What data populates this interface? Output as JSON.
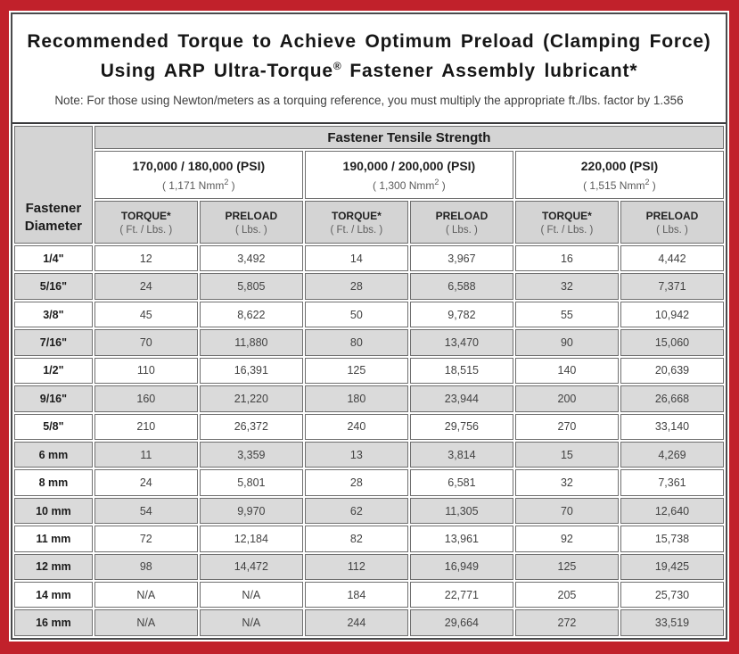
{
  "page": {
    "title_line1": "Recommended Torque to Achieve Optimum Preload (Clamping Force)",
    "title_line2_prefix": "Using ARP Ultra-Torque",
    "title_line2_reg": "®",
    "title_line2_suffix": " Fastener Assembly lubricant*",
    "note": "Note: For those using Newton/meters as a torquing reference, you must multiply the appropriate ft./lbs. factor by 1.356"
  },
  "colors": {
    "border_red": "#c1212b",
    "header_gray": "#d4d4d4",
    "stripe_gray": "#dadada",
    "frame_border": "#4a4a4c",
    "cell_border": "#6f6f6f"
  },
  "table": {
    "corner_header_line1": "Fastener",
    "corner_header_line2": "Diameter",
    "tensile_header": "Fastener Tensile Strength",
    "groups": [
      {
        "psi": "170,000 / 180,000 (PSI)",
        "nmm_prefix": "( 1,171 Nmm",
        "nmm_sup": "2",
        "nmm_suffix": " )"
      },
      {
        "psi": "190,000 / 200,000 (PSI)",
        "nmm_prefix": "( 1,300 Nmm",
        "nmm_sup": "2",
        "nmm_suffix": " )"
      },
      {
        "psi": "220,000 (PSI)",
        "nmm_prefix": "( 1,515 Nmm",
        "nmm_sup": "2",
        "nmm_suffix": " )"
      }
    ],
    "sub_headers": {
      "torque_label": "TORQUE*",
      "torque_unit": "( Ft. / Lbs. )",
      "preload_label": "PRELOAD",
      "preload_unit": "( Lbs. )"
    },
    "rows": [
      {
        "diameter": "1/4\"",
        "values": [
          "12",
          "3,492",
          "14",
          "3,967",
          "16",
          "4,442"
        ]
      },
      {
        "diameter": "5/16\"",
        "values": [
          "24",
          "5,805",
          "28",
          "6,588",
          "32",
          "7,371"
        ]
      },
      {
        "diameter": "3/8\"",
        "values": [
          "45",
          "8,622",
          "50",
          "9,782",
          "55",
          "10,942"
        ]
      },
      {
        "diameter": "7/16\"",
        "values": [
          "70",
          "11,880",
          "80",
          "13,470",
          "90",
          "15,060"
        ]
      },
      {
        "diameter": "1/2\"",
        "values": [
          "110",
          "16,391",
          "125",
          "18,515",
          "140",
          "20,639"
        ]
      },
      {
        "diameter": "9/16\"",
        "values": [
          "160",
          "21,220",
          "180",
          "23,944",
          "200",
          "26,668"
        ]
      },
      {
        "diameter": "5/8\"",
        "values": [
          "210",
          "26,372",
          "240",
          "29,756",
          "270",
          "33,140"
        ]
      },
      {
        "diameter": "6 mm",
        "values": [
          "11",
          "3,359",
          "13",
          "3,814",
          "15",
          "4,269"
        ]
      },
      {
        "diameter": "8 mm",
        "values": [
          "24",
          "5,801",
          "28",
          "6,581",
          "32",
          "7,361"
        ]
      },
      {
        "diameter": "10 mm",
        "values": [
          "54",
          "9,970",
          "62",
          "11,305",
          "70",
          "12,640"
        ]
      },
      {
        "diameter": "11 mm",
        "values": [
          "72",
          "12,184",
          "82",
          "13,961",
          "92",
          "15,738"
        ]
      },
      {
        "diameter": "12 mm",
        "values": [
          "98",
          "14,472",
          "112",
          "16,949",
          "125",
          "19,425"
        ]
      },
      {
        "diameter": "14 mm",
        "values": [
          "N/A",
          "N/A",
          "184",
          "22,771",
          "205",
          "25,730"
        ]
      },
      {
        "diameter": "16 mm",
        "values": [
          "N/A",
          "N/A",
          "244",
          "29,664",
          "272",
          "33,519"
        ]
      }
    ]
  }
}
